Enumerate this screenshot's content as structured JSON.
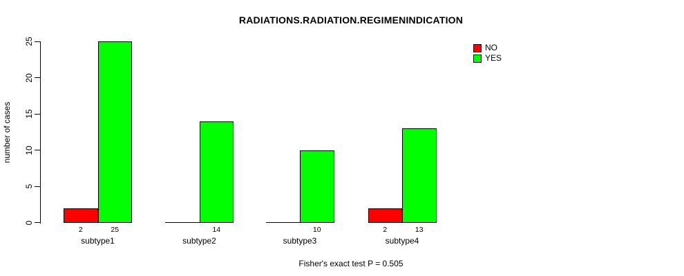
{
  "chart_data": {
    "type": "bar",
    "title": "RADIATIONS.RADIATION.REGIMENINDICATION",
    "ylabel": "number of cases",
    "xlabel": "",
    "categories": [
      "subtype1",
      "subtype2",
      "subtype3",
      "subtype4"
    ],
    "series": [
      {
        "name": "NO",
        "color": "#FF0000",
        "values": [
          2,
          0,
          0,
          2
        ]
      },
      {
        "name": "YES",
        "color": "#00FF00",
        "values": [
          25,
          14,
          10,
          13
        ]
      }
    ],
    "ylim": [
      0,
      25
    ],
    "yticks": [
      0,
      5,
      10,
      15,
      20,
      25
    ],
    "bar_value_labels": {
      "shown": true,
      "hide_zero": true
    },
    "legend": {
      "position": "top-right-inside"
    },
    "grid": false,
    "footnote": "Fisher's exact test P = 0.505",
    "colors": {
      "background": "#FFFFFF",
      "axis": "#000000",
      "text": "#000000"
    }
  }
}
